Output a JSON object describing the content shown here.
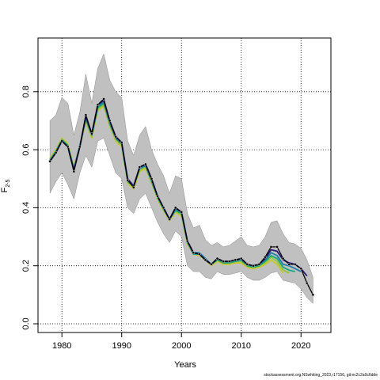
{
  "chart_data": {
    "type": "line",
    "xlabel": "Years",
    "ylabel_main": "F",
    "ylabel_sub": "2-5",
    "xlim": [
      1976,
      2025
    ],
    "ylim": [
      -0.03,
      0.985
    ],
    "xticks": [
      1980,
      1990,
      2000,
      2010,
      2020
    ],
    "yticks": [
      0.0,
      0.2,
      0.4,
      0.6,
      0.8
    ],
    "ytick_labels": [
      "0.0",
      "0.2",
      "0.4",
      "0.6",
      "0.8"
    ],
    "grid": true,
    "colors": {
      "band": "#c0c0c0",
      "band_edge": "#8a8a8a",
      "main": "#000000",
      "retro1": "#2b1a7a",
      "retro2": "#1f7ea8",
      "retro3": "#18a878",
      "retro4": "#8ec83a",
      "retro5": "#c8c822"
    },
    "confidence_band": {
      "x": [
        1978,
        1979,
        1980,
        1981,
        1982,
        1983,
        1984,
        1985,
        1986,
        1987,
        1988,
        1989,
        1990,
        1991,
        1992,
        1993,
        1994,
        1995,
        1996,
        1997,
        1998,
        1999,
        2000,
        2001,
        2002,
        2003,
        2004,
        2005,
        2006,
        2007,
        2008,
        2009,
        2010,
        2011,
        2012,
        2013,
        2014,
        2015,
        2016,
        2017,
        2018,
        2019,
        2020,
        2021,
        2022
      ],
      "lower": [
        0.45,
        0.49,
        0.52,
        0.48,
        0.43,
        0.52,
        0.58,
        0.54,
        0.63,
        0.64,
        0.58,
        0.52,
        0.5,
        0.4,
        0.38,
        0.43,
        0.45,
        0.4,
        0.35,
        0.31,
        0.28,
        0.32,
        0.3,
        0.2,
        0.18,
        0.18,
        0.16,
        0.155,
        0.18,
        0.17,
        0.17,
        0.175,
        0.18,
        0.16,
        0.15,
        0.15,
        0.16,
        0.175,
        0.18,
        0.15,
        0.145,
        0.14,
        0.12,
        0.09,
        0.07
      ],
      "upper": [
        0.7,
        0.72,
        0.78,
        0.76,
        0.65,
        0.73,
        0.86,
        0.76,
        0.88,
        0.93,
        0.84,
        0.8,
        0.78,
        0.63,
        0.58,
        0.65,
        0.68,
        0.6,
        0.55,
        0.51,
        0.45,
        0.51,
        0.5,
        0.38,
        0.33,
        0.34,
        0.29,
        0.27,
        0.28,
        0.265,
        0.27,
        0.285,
        0.3,
        0.27,
        0.265,
        0.27,
        0.3,
        0.35,
        0.355,
        0.31,
        0.28,
        0.275,
        0.26,
        0.22,
        0.16
      ]
    },
    "series": [
      {
        "x": [
          1978,
          1979,
          1980,
          1981,
          1982,
          1983,
          1984,
          1985,
          1986,
          1987,
          1988,
          1989,
          1990,
          1991,
          1992,
          1993,
          1994,
          1995,
          1996,
          1997,
          1998,
          1999,
          2000,
          2001,
          2002,
          2003,
          2004,
          2005,
          2006,
          2007,
          2008,
          2009,
          2010,
          2011,
          2012,
          2013,
          2014,
          2015,
          2016,
          2017,
          2018,
          2019,
          2020,
          2021,
          2022
        ],
        "values": [
          0.56,
          0.59,
          0.63,
          0.61,
          0.525,
          0.61,
          0.72,
          0.655,
          0.755,
          0.775,
          0.7,
          0.645,
          0.625,
          0.495,
          0.47,
          0.54,
          0.55,
          0.5,
          0.44,
          0.4,
          0.36,
          0.4,
          0.385,
          0.285,
          0.245,
          0.24,
          0.22,
          0.205,
          0.225,
          0.215,
          0.215,
          0.22,
          0.225,
          0.205,
          0.2,
          0.205,
          0.23,
          0.265,
          0.265,
          0.225,
          0.205,
          0.205,
          0.19,
          0.14,
          0.1
        ]
      },
      {
        "x": [
          1978,
          1979,
          1980,
          1981,
          1982,
          1983,
          1984,
          1985,
          1986,
          1987,
          1988,
          1989,
          1990,
          1991,
          1992,
          1993,
          1994,
          1995,
          1996,
          1997,
          1998,
          1999,
          2000,
          2001,
          2002,
          2003,
          2004,
          2005,
          2006,
          2007,
          2008,
          2009,
          2010,
          2011,
          2012,
          2013,
          2014,
          2015,
          2016,
          2017,
          2018,
          2019,
          2020,
          2021
        ],
        "values": [
          0.56,
          0.59,
          0.63,
          0.61,
          0.53,
          0.61,
          0.715,
          0.655,
          0.755,
          0.77,
          0.7,
          0.645,
          0.625,
          0.5,
          0.475,
          0.54,
          0.55,
          0.5,
          0.44,
          0.4,
          0.36,
          0.4,
          0.385,
          0.285,
          0.245,
          0.24,
          0.22,
          0.205,
          0.225,
          0.215,
          0.215,
          0.22,
          0.225,
          0.205,
          0.2,
          0.205,
          0.225,
          0.255,
          0.25,
          0.22,
          0.21,
          0.205,
          0.19,
          0.165
        ]
      },
      {
        "x": [
          1978,
          1979,
          1980,
          1981,
          1982,
          1983,
          1984,
          1985,
          1986,
          1987,
          1988,
          1989,
          1990,
          1991,
          1992,
          1993,
          1994,
          1995,
          1996,
          1997,
          1998,
          1999,
          2000,
          2001,
          2002,
          2003,
          2004,
          2005,
          2006,
          2007,
          2008,
          2009,
          2010,
          2011,
          2012,
          2013,
          2014,
          2015,
          2016,
          2017,
          2018,
          2019,
          2020
        ],
        "values": [
          0.56,
          0.59,
          0.63,
          0.61,
          0.53,
          0.61,
          0.71,
          0.65,
          0.75,
          0.765,
          0.695,
          0.64,
          0.62,
          0.495,
          0.475,
          0.535,
          0.545,
          0.495,
          0.44,
          0.4,
          0.36,
          0.395,
          0.385,
          0.285,
          0.245,
          0.245,
          0.225,
          0.205,
          0.225,
          0.215,
          0.215,
          0.22,
          0.22,
          0.205,
          0.2,
          0.205,
          0.22,
          0.245,
          0.235,
          0.205,
          0.2,
          0.19,
          0.18
        ]
      },
      {
        "x": [
          1978,
          1979,
          1980,
          1981,
          1982,
          1983,
          1984,
          1985,
          1986,
          1987,
          1988,
          1989,
          1990,
          1991,
          1992,
          1993,
          1994,
          1995,
          1996,
          1997,
          1998,
          1999,
          2000,
          2001,
          2002,
          2003,
          2004,
          2005,
          2006,
          2007,
          2008,
          2009,
          2010,
          2011,
          2012,
          2013,
          2014,
          2015,
          2016,
          2017,
          2018,
          2019
        ],
        "values": [
          0.565,
          0.595,
          0.635,
          0.615,
          0.535,
          0.615,
          0.705,
          0.65,
          0.745,
          0.76,
          0.69,
          0.64,
          0.62,
          0.49,
          0.475,
          0.535,
          0.545,
          0.49,
          0.435,
          0.395,
          0.36,
          0.39,
          0.38,
          0.28,
          0.24,
          0.24,
          0.22,
          0.205,
          0.22,
          0.21,
          0.21,
          0.215,
          0.22,
          0.2,
          0.195,
          0.2,
          0.215,
          0.235,
          0.225,
          0.195,
          0.185,
          0.18
        ]
      },
      {
        "x": [
          1978,
          1979,
          1980,
          1981,
          1982,
          1983,
          1984,
          1985,
          1986,
          1987,
          1988,
          1989,
          1990,
          1991,
          1992,
          1993,
          1994,
          1995,
          1996,
          1997,
          1998,
          1999,
          2000,
          2001,
          2002,
          2003,
          2004,
          2005,
          2006,
          2007,
          2008,
          2009,
          2010,
          2011,
          2012,
          2013,
          2014,
          2015,
          2016,
          2017,
          2018
        ],
        "values": [
          0.565,
          0.595,
          0.635,
          0.615,
          0.535,
          0.61,
          0.7,
          0.645,
          0.74,
          0.755,
          0.685,
          0.635,
          0.615,
          0.49,
          0.47,
          0.53,
          0.54,
          0.49,
          0.435,
          0.395,
          0.36,
          0.39,
          0.375,
          0.28,
          0.24,
          0.24,
          0.22,
          0.205,
          0.22,
          0.21,
          0.21,
          0.215,
          0.215,
          0.2,
          0.195,
          0.2,
          0.21,
          0.23,
          0.215,
          0.185,
          0.175
        ]
      },
      {
        "x": [
          1978,
          1979,
          1980,
          1981,
          1982,
          1983,
          1984,
          1985,
          1986,
          1987,
          1988,
          1989,
          1990,
          1991,
          1992,
          1993,
          1994,
          1995,
          1996,
          1997,
          1998,
          1999,
          2000,
          2001,
          2002,
          2003,
          2004,
          2005,
          2006,
          2007,
          2008,
          2009,
          2010,
          2011,
          2012,
          2013,
          2014,
          2015,
          2016,
          2017
        ],
        "values": [
          0.57,
          0.6,
          0.64,
          0.62,
          0.54,
          0.61,
          0.695,
          0.64,
          0.735,
          0.75,
          0.68,
          0.63,
          0.61,
          0.485,
          0.465,
          0.525,
          0.535,
          0.485,
          0.43,
          0.39,
          0.355,
          0.385,
          0.37,
          0.275,
          0.24,
          0.235,
          0.22,
          0.2,
          0.215,
          0.205,
          0.205,
          0.21,
          0.21,
          0.195,
          0.19,
          0.195,
          0.205,
          0.22,
          0.205,
          0.175
        ]
      }
    ]
  },
  "footer": "stockassessment.org,NSwhiting_2023,r17156, git:ec2c2a0c6dde"
}
